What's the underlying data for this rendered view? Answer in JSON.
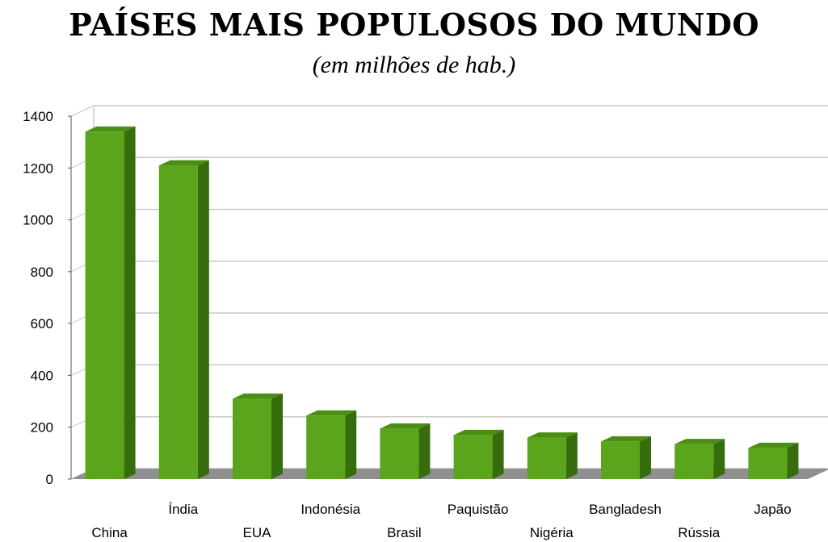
{
  "chart_data": {
    "type": "bar",
    "title": "PAÍSES MAIS POPULOSOS DO MUNDO",
    "subtitle": "(em milhões de hab.)",
    "categories": [
      "China",
      "Índia",
      "EUA",
      "Indonésia",
      "Brasil",
      "Paquistão",
      "Nigéria",
      "Bangladesh",
      "Rússia",
      "Japão"
    ],
    "values": [
      1340,
      1210,
      310,
      245,
      195,
      170,
      160,
      145,
      135,
      120
    ],
    "ylim": [
      0,
      1400
    ],
    "yticks": [
      0,
      200,
      400,
      600,
      800,
      1000,
      1200,
      1400
    ],
    "grid": true,
    "colors": {
      "bar_front": "#5aa51c",
      "bar_side": "#356d0c",
      "bar_top": "#4b8e14",
      "floor": "#8f8f8f",
      "grid": "#c8c8c8"
    }
  }
}
